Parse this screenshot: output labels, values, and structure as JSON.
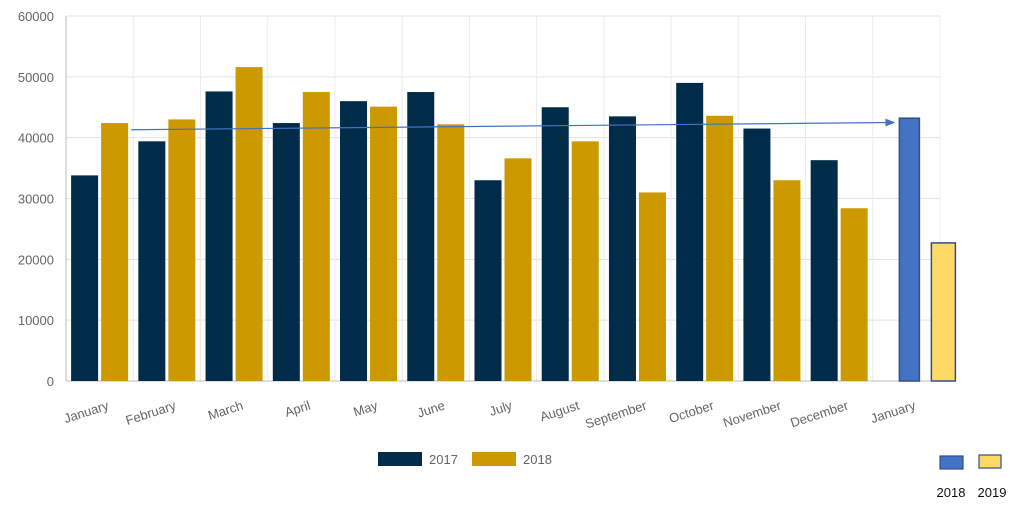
{
  "chart_data": {
    "type": "bar",
    "categories": [
      "January",
      "February",
      "March",
      "April",
      "May",
      "June",
      "July",
      "August",
      "September",
      "October",
      "November",
      "December"
    ],
    "series": [
      {
        "name": "2017",
        "color": "#002b49",
        "values": [
          33800,
          39400,
          47600,
          42400,
          46000,
          47500,
          33000,
          45000,
          43500,
          49000,
          41500,
          36300
        ]
      },
      {
        "name": "2018",
        "color": "#cc9900",
        "values": [
          42400,
          43000,
          51600,
          47500,
          45100,
          42200,
          36600,
          39400,
          31000,
          43600,
          33000,
          28400
        ]
      }
    ],
    "yticks": [
      0,
      10000,
      20000,
      30000,
      40000,
      50000,
      60000
    ],
    "ylim": [
      0,
      60000
    ],
    "grid": true,
    "legend": {
      "placement": "bottom",
      "labels": [
        "2017",
        "2018"
      ]
    },
    "extra": {
      "category": "January",
      "bars": [
        {
          "name": "2018",
          "value": 43200,
          "color": "#4472c4"
        },
        {
          "name": "2019",
          "value": 22700,
          "color": "#ffd966"
        }
      ],
      "legend_labels": [
        "2018",
        "2019"
      ]
    },
    "arrow": {
      "from_value": 41300,
      "to_value": 42500,
      "color": "#4472c4"
    }
  }
}
